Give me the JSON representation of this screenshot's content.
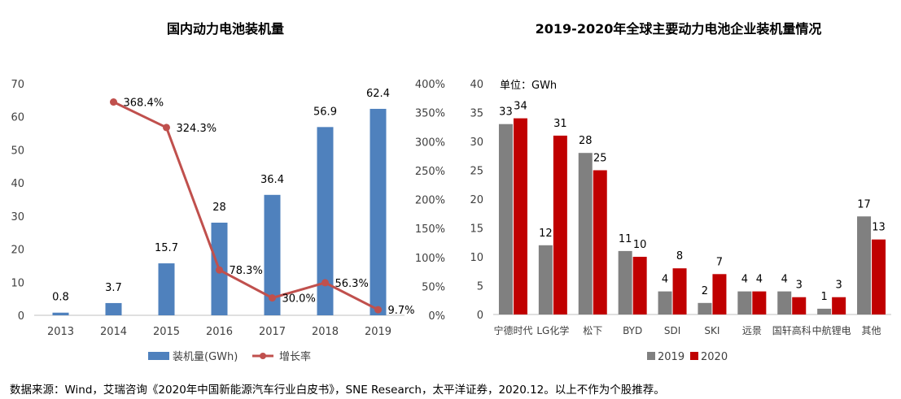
{
  "chart_data": [
    {
      "type": "bar",
      "title": "国内动力电池装机量",
      "categories": [
        "2013",
        "2014",
        "2015",
        "2016",
        "2017",
        "2018",
        "2019"
      ],
      "series": [
        {
          "name": "装机量(GWh)",
          "type": "bar",
          "axis": "left",
          "values": [
            0.8,
            3.7,
            15.7,
            28,
            36.4,
            56.9,
            62.4
          ],
          "labels": [
            "0.8",
            "3.7",
            "15.7",
            "28",
            "36.4",
            "56.9",
            "62.4"
          ],
          "color": "#4f81bd"
        },
        {
          "name": "增长率",
          "type": "line",
          "axis": "right",
          "values": [
            null,
            368.4,
            324.3,
            78.3,
            30.0,
            56.3,
            9.7
          ],
          "labels": [
            "",
            "368.4%",
            "324.3%",
            "78.3%",
            "30.0%",
            "56.3%",
            "9.7%"
          ],
          "color": "#c0504d"
        }
      ],
      "ylim": [
        0,
        70
      ],
      "yticks": [
        "0",
        "10",
        "20",
        "30",
        "40",
        "50",
        "60",
        "70"
      ],
      "y2lim": [
        0,
        400
      ],
      "y2ticks": [
        "0%",
        "50%",
        "100%",
        "150%",
        "200%",
        "250%",
        "300%",
        "350%",
        "400%"
      ],
      "legend_position": "bottom",
      "grid": false
    },
    {
      "type": "bar",
      "title": "2019-2020年全球主要动力电池企业装机量情况",
      "unit_label": "单位：GWh",
      "categories": [
        "宁德时代",
        "LG化学",
        "松下",
        "BYD",
        "SDI",
        "SKI",
        "远景",
        "国轩高科",
        "中航锂电",
        "其他"
      ],
      "series": [
        {
          "name": "2019",
          "values": [
            33,
            12,
            28,
            11,
            4,
            2,
            4,
            4,
            1,
            17
          ],
          "color": "#808080"
        },
        {
          "name": "2020",
          "values": [
            34,
            31,
            25,
            10,
            8,
            7,
            4,
            3,
            3,
            13
          ],
          "color": "#c00000"
        }
      ],
      "ylim": [
        0,
        40
      ],
      "yticks": [
        "0",
        "5",
        "10",
        "15",
        "20",
        "25",
        "30",
        "35",
        "40"
      ],
      "legend_position": "bottom",
      "grid": false
    }
  ],
  "source_note": "数据来源：Wind，艾瑞咨询《2020年中国新能源汽车行业白皮书》，SNE Research，太平洋证券，2020.12。以上不作为个股推荐。"
}
